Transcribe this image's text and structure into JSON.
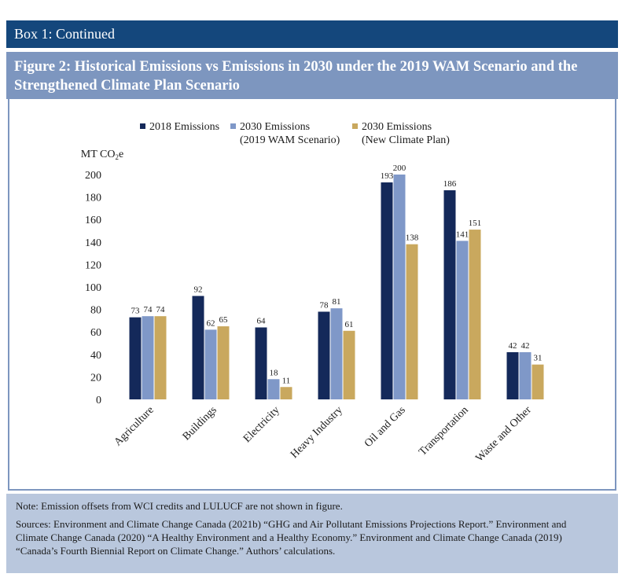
{
  "box_header": "Box 1: Continued",
  "figure_title_line1": "Figure 2: Historical Emissions vs Emissions in 2030 under the 2019 WAM Scenario and the",
  "figure_title_line2": "Strengthened Climate Plan Scenario",
  "notes": {
    "note": "Note: Emission offsets from WCI credits and LULUCF are not shown in figure.",
    "sources_line1": "Sources: Environment and Climate Change Canada (2021b) “GHG and Air Pollutant Emissions Projections Report.” Environment and",
    "sources_line2": "Climate Change Canada (2020) “A Healthy Environment and a Healthy Economy.” Environment and Climate Change Canada (2019)",
    "sources_line3": "“Canada’s Fourth Biennial Report on Climate Change.” Authors’ calculations."
  },
  "chart_data": {
    "type": "bar",
    "ylabel": "MT CO",
    "ylabel_sub": "2",
    "ylabel_suffix": "e",
    "ylim": [
      0,
      200
    ],
    "yticks": [
      0,
      20,
      40,
      60,
      80,
      100,
      120,
      140,
      160,
      180,
      200
    ],
    "grid": false,
    "legend_position": "top",
    "categories": [
      "Agriculture",
      "Buildings",
      "Electricity",
      "Heavy Industry",
      "Oil and Gas",
      "Transportation",
      "Waste and Other"
    ],
    "series": [
      {
        "name": "2018 Emissions",
        "legend_line1": "2018 Emissions",
        "legend_line2": "",
        "color": "#14295a",
        "values": [
          73,
          92,
          64,
          78,
          193,
          186,
          42
        ]
      },
      {
        "name": "2030 Emissions (2019 WAM Scenario)",
        "legend_line1": "2030 Emissions",
        "legend_line2": "(2019 WAM Scenario)",
        "color": "#7f98c8",
        "values": [
          74,
          62,
          18,
          81,
          200,
          141,
          42
        ]
      },
      {
        "name": "2030 Emissions (New Climate Plan)",
        "legend_line1": "2030 Emissions",
        "legend_line2": "(New Climate Plan)",
        "color": "#c9a85e",
        "values": [
          74,
          65,
          11,
          61,
          138,
          151,
          31
        ]
      }
    ]
  }
}
